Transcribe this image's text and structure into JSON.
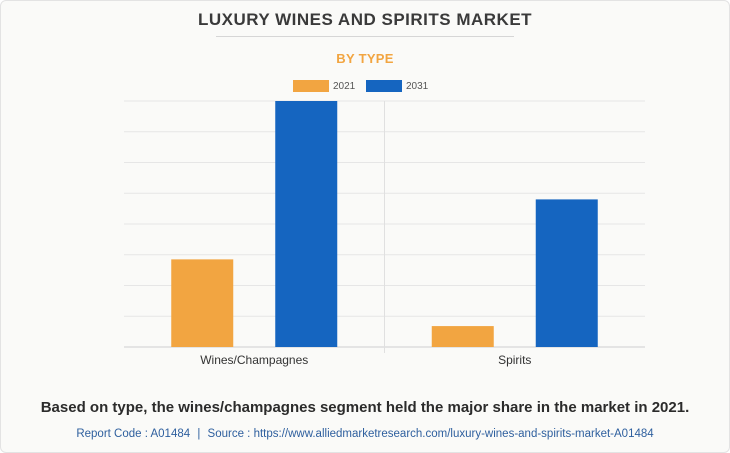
{
  "header": {
    "title": "LUXURY WINES AND SPIRITS MARKET",
    "subtitle": "BY TYPE"
  },
  "caption": "Based on type, the wines/champagnes segment held the major share in the market in 2021.",
  "footer": {
    "report_code": "Report Code : A01484",
    "separator": "|",
    "source": "Source : https://www.alliedmarketresearch.com/luxury-wines-and-spirits-market-A01484"
  },
  "chart_data": {
    "type": "bar",
    "title": "LUXURY WINES AND SPIRITS MARKET",
    "subtitle": "BY TYPE",
    "xlabel": "",
    "ylabel": "",
    "categories": [
      "Wines/Champagnes",
      "Spirits"
    ],
    "series": [
      {
        "name": "2021",
        "color": "#f2a541",
        "values": [
          28.5,
          6.8
        ]
      },
      {
        "name": "2031",
        "color": "#1565c0",
        "values": [
          80,
          48
        ]
      }
    ],
    "ylim": [
      0,
      80
    ],
    "y_gridlines": 8,
    "y_tick_labels_shown": false,
    "grid": true,
    "legend_position": "top-center"
  }
}
